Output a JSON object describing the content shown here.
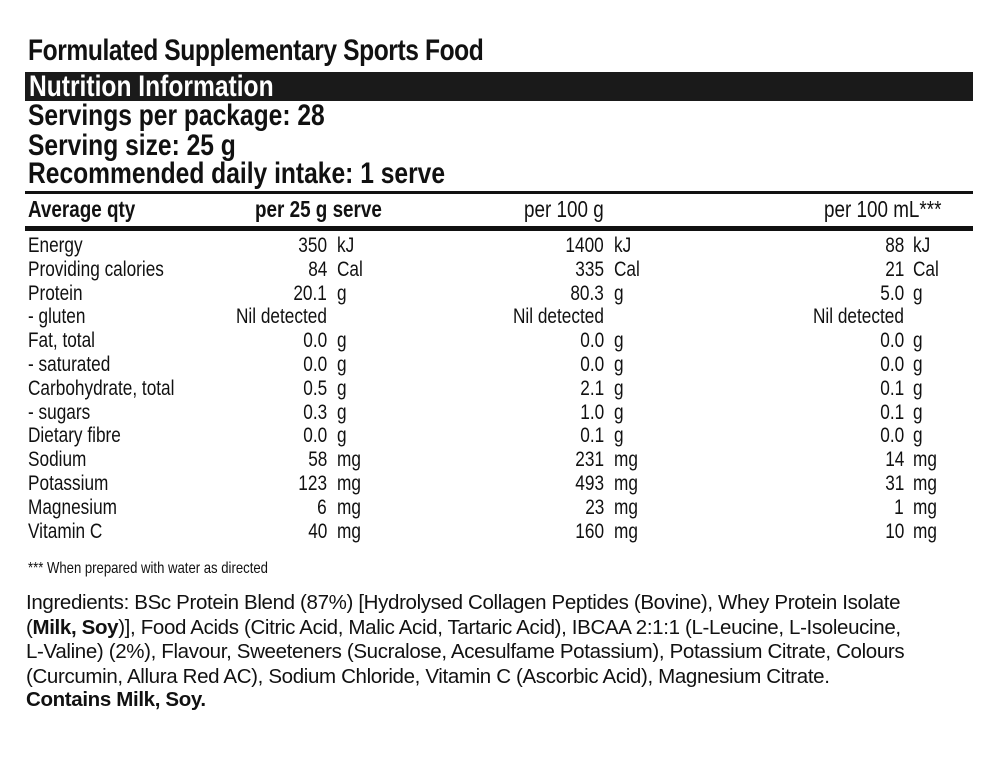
{
  "title": "Formulated Supplementary Sports Food",
  "banner": "Nutrition Information",
  "servings": {
    "per_package": "Servings per package: 28",
    "size": "Serving size: 25 g",
    "recommended": "Recommended daily intake: 1 serve"
  },
  "table": {
    "headers": [
      "Average qty",
      "per 25 g serve",
      "per 100 g",
      "per 100 mL***"
    ],
    "rows": [
      {
        "label": "Energy",
        "c1": [
          "350",
          "kJ"
        ],
        "c2": [
          "1400",
          "kJ"
        ],
        "c3": [
          "88",
          "kJ"
        ]
      },
      {
        "label": "Providing calories",
        "c1": [
          "84",
          "Cal"
        ],
        "c2": [
          "335",
          "Cal"
        ],
        "c3": [
          "21",
          "Cal"
        ]
      },
      {
        "label": "Protein",
        "c1": [
          "20.1",
          "g"
        ],
        "c2": [
          "80.3",
          "g"
        ],
        "c3": [
          "5.0",
          "g"
        ]
      },
      {
        "label": "- gluten",
        "c1": [
          "Nil detected",
          ""
        ],
        "c2": [
          "Nil detected",
          ""
        ],
        "c3": [
          "Nil detected",
          ""
        ]
      },
      {
        "label": "Fat, total",
        "c1": [
          "0.0",
          "g"
        ],
        "c2": [
          "0.0",
          "g"
        ],
        "c3": [
          "0.0",
          "g"
        ]
      },
      {
        "label": "- saturated",
        "c1": [
          "0.0",
          "g"
        ],
        "c2": [
          "0.0",
          "g"
        ],
        "c3": [
          "0.0",
          "g"
        ]
      },
      {
        "label": "Carbohydrate, total",
        "c1": [
          "0.5",
          "g"
        ],
        "c2": [
          "2.1",
          "g"
        ],
        "c3": [
          "0.1",
          "g"
        ]
      },
      {
        "label": "- sugars",
        "c1": [
          "0.3",
          "g"
        ],
        "c2": [
          "1.0",
          "g"
        ],
        "c3": [
          "0.1",
          "g"
        ]
      },
      {
        "label": "Dietary fibre",
        "c1": [
          "0.0",
          "g"
        ],
        "c2": [
          "0.1",
          "g"
        ],
        "c3": [
          "0.0",
          "g"
        ]
      },
      {
        "label": "Sodium",
        "c1": [
          "58",
          "mg"
        ],
        "c2": [
          "231",
          "mg"
        ],
        "c3": [
          "14",
          "mg"
        ]
      },
      {
        "label": "Potassium",
        "c1": [
          "123",
          "mg"
        ],
        "c2": [
          "493",
          "mg"
        ],
        "c3": [
          "31",
          "mg"
        ]
      },
      {
        "label": "Magnesium",
        "c1": [
          "6",
          "mg"
        ],
        "c2": [
          "23",
          "mg"
        ],
        "c3": [
          "1",
          "mg"
        ]
      },
      {
        "label": "Vitamin C",
        "c1": [
          "40",
          "mg"
        ],
        "c2": [
          "160",
          "mg"
        ],
        "c3": [
          "10",
          "mg"
        ]
      }
    ]
  },
  "footnote": "*** When prepared with water as directed",
  "ingredients": {
    "part1": "Ingredients: BSc Protein Blend (87%) [Hydrolysed Collagen Peptides (Bovine), Whey Protein Isolate (",
    "allergens": "Milk, Soy",
    "part2": ")], Food Acids (Citric Acid, Malic Acid, Tartaric Acid), IBCAA 2:1:1 (L-Leucine, L-Isoleucine, L-Valine) (2%), Flavour, Sweeteners (Sucralose, Acesulfame Potassium), Potassium Citrate, Colours (Curcumin, Allura Red AC), Sodium Chloride, Vitamin C (Ascorbic Acid), Magnesium Citrate."
  },
  "contains": "Contains Milk, Soy."
}
